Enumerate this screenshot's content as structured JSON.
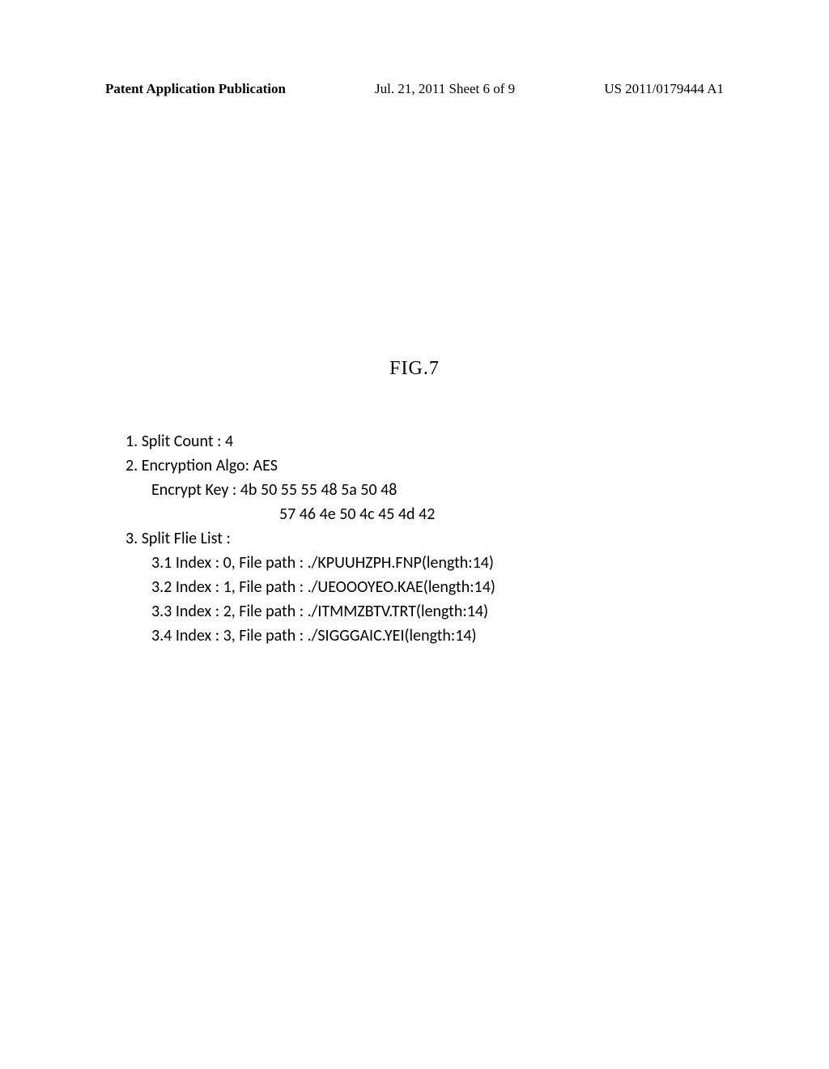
{
  "header": {
    "left": "Patent Application Publication",
    "center": "Jul. 21, 2011  Sheet 6 of 9",
    "right": "US 2011/0179444 A1"
  },
  "figure": {
    "label": "FIG.7"
  },
  "content": {
    "line1": "1. Split Count : 4",
    "line2": "2. Encryption Algo: AES",
    "line3": "Encrypt Key : 4b 50 55 55 48 5a 50 48",
    "line4": "57 46 4e 50 4c 45 4d 42",
    "line5": "3. Split Flie List :",
    "line6": "3.1 Index : 0, File path : ./KPUUHZPH.FNP(length:14)",
    "line7": "3.2 Index : 1, File path : ./UEOOOYEO.KAE(length:14)",
    "line8": "3.3 Index : 2, File path : ./ITMMZBTV.TRT(length:14)",
    "line9": "3.4 Index : 3, File path : ./SIGGGAIC.YEI(length:14)"
  }
}
